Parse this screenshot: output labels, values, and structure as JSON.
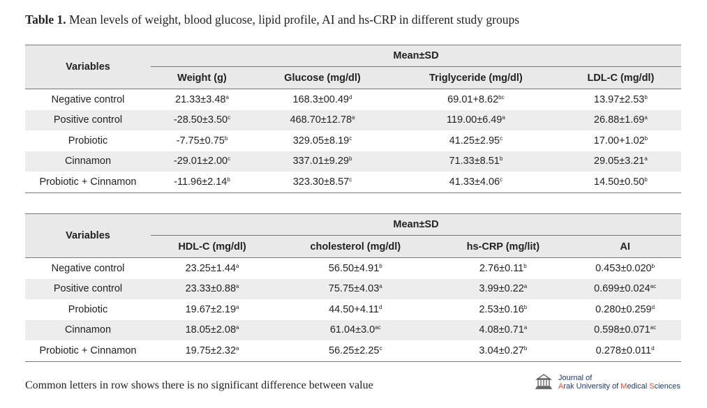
{
  "caption": {
    "label": "Table 1.",
    "text": "Mean levels of weight, blood glucose, lipid profile, AI and hs-CRP in different study groups"
  },
  "table1": {
    "var_header": "Variables",
    "group_header": "Mean±SD",
    "columns": [
      "Weight (g)",
      "Glucose (mg/dl)",
      "Triglyceride (mg/dl)",
      "LDL-C (mg/dl)"
    ],
    "rows": [
      {
        "label": "Negative control",
        "cells": [
          [
            "21.33±3.48",
            "a"
          ],
          [
            "168.3±00.49",
            "d"
          ],
          [
            "69.01+8.62",
            "bc"
          ],
          [
            "13.97±2.53",
            "b"
          ]
        ]
      },
      {
        "label": "Positive control",
        "cells": [
          [
            "-28.50±3.50",
            "c"
          ],
          [
            "468.70±12.78",
            "a"
          ],
          [
            "119.00±6.49",
            "a"
          ],
          [
            "26.88±1.69",
            "a"
          ]
        ]
      },
      {
        "label": "Probiotic",
        "cells": [
          [
            "-7.75±0.75",
            "b"
          ],
          [
            "329.05±8.19",
            "c"
          ],
          [
            "41.25±2.95",
            "c"
          ],
          [
            "17.00+1.02",
            "b"
          ]
        ]
      },
      {
        "label": "Cinnamon",
        "cells": [
          [
            "-29.01±2.00",
            "c"
          ],
          [
            "337.01±9.29",
            "b"
          ],
          [
            "71.33±8.51",
            "b"
          ],
          [
            "29.05±3.21",
            "a"
          ]
        ]
      },
      {
        "label": "Probiotic + Cinnamon",
        "cells": [
          [
            "-11.96±2.14",
            "b"
          ],
          [
            "323.30±8.57",
            "c"
          ],
          [
            "41.33±4.06",
            "c"
          ],
          [
            "14.50±0.50",
            "b"
          ]
        ]
      }
    ]
  },
  "table2": {
    "var_header": "Variables",
    "group_header": "Mean±SD",
    "columns": [
      "HDL-C (mg/dl)",
      "cholesterol (mg/dl)",
      "hs-CRP (mg/lit)",
      "AI"
    ],
    "rows": [
      {
        "label": "Negative control",
        "cells": [
          [
            "23.25±1.44",
            "a"
          ],
          [
            "56.50±4.91",
            "b"
          ],
          [
            "2.76±0.11",
            "b"
          ],
          [
            "0.453±0.020",
            "b"
          ]
        ]
      },
      {
        "label": "Positive control",
        "cells": [
          [
            "23.33±0.88",
            "a"
          ],
          [
            "75.75±4.03",
            "a"
          ],
          [
            "3.99±0.22",
            "a"
          ],
          [
            "0.699±0.024",
            "ac"
          ]
        ]
      },
      {
        "label": "Probiotic",
        "cells": [
          [
            "19.67±2.19",
            "a"
          ],
          [
            "44.50+4.11",
            "d"
          ],
          [
            "2.53±0.16",
            "b"
          ],
          [
            "0.280±0.259",
            "d"
          ]
        ]
      },
      {
        "label": "Cinnamon",
        "cells": [
          [
            "18.05±2.08",
            "a"
          ],
          [
            "61.04±3.0",
            "ac"
          ],
          [
            "4.08±0.71",
            "a"
          ],
          [
            "0.598±0.071",
            "ac"
          ]
        ]
      },
      {
        "label": "Probiotic + Cinnamon",
        "cells": [
          [
            "19.75±2.32",
            "a"
          ],
          [
            "56.25±2.25",
            "c"
          ],
          [
            "3.04±0.27",
            "b"
          ],
          [
            "0.278±0.011",
            "d"
          ]
        ]
      }
    ]
  },
  "footer": "Common letters in row shows there is no significant difference between value",
  "logo": {
    "line1": "Journal of",
    "line2_a": "A",
    "line2_b": "rak University of ",
    "line2_c": "M",
    "line2_d": "edical ",
    "line2_e": "S",
    "line2_f": "ciences"
  },
  "colors": {
    "header_bg": "#e9e9ea",
    "band_bg": "#ededee",
    "rule": "#777777",
    "logo_blue": "#1f3a6b",
    "logo_orange": "#c75a2a"
  }
}
